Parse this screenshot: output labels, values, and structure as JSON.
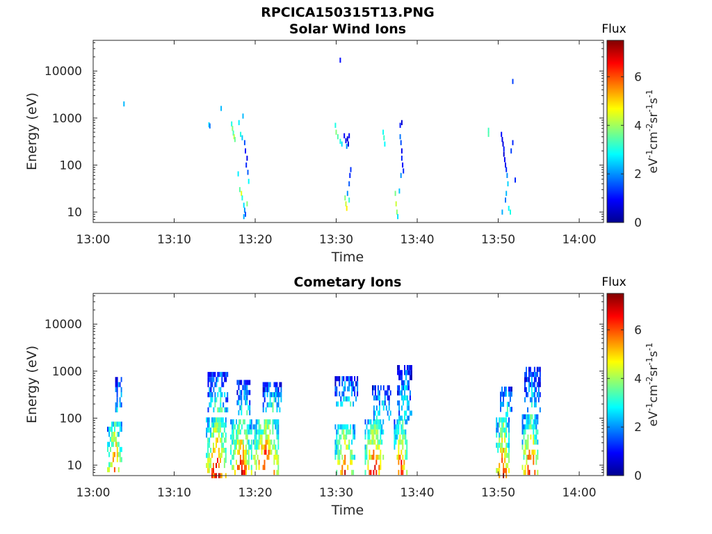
{
  "figure": {
    "title": "RPCICA150315T13.PNG"
  },
  "chart_data": [
    {
      "type": "heatmap",
      "title": "Solar Wind Ions",
      "xlabel": "Time",
      "ylabel": "Energy (eV)",
      "xlim": [
        "13:00",
        "14:03"
      ],
      "x_ticks": [
        "13:00",
        "13:10",
        "13:20",
        "13:30",
        "13:40",
        "13:50",
        "14:00"
      ],
      "ylim": [
        6,
        45000
      ],
      "yscale": "log",
      "y_ticks": [
        10,
        100,
        1000,
        10000
      ],
      "y_tick_labels": [
        "10",
        "100",
        "1000",
        "10000"
      ],
      "colorbar": {
        "title": "Flux",
        "label": "eV-1cm-2sr-1s-1",
        "range": [
          0,
          7.5
        ],
        "ticks": [
          "0",
          "2",
          "4",
          "6"
        ],
        "colormap": "jet"
      },
      "grid": false,
      "cells_note_units": "minutes after 13:00, energy eV, flux value",
      "cells": [
        [
          3.8,
          2000,
          2.3
        ],
        [
          14.3,
          720,
          2.6
        ],
        [
          14.4,
          680,
          1.8
        ],
        [
          15.8,
          1600,
          2.3
        ],
        [
          17.1,
          750,
          3.0
        ],
        [
          17.2,
          600,
          3.8
        ],
        [
          17.3,
          480,
          3.3
        ],
        [
          17.4,
          400,
          4.2
        ],
        [
          17.5,
          350,
          3.6
        ],
        [
          18.0,
          800,
          2.7
        ],
        [
          18.2,
          450,
          3.0
        ],
        [
          18.4,
          380,
          2.4
        ],
        [
          18.5,
          1100,
          2.3
        ],
        [
          18.7,
          300,
          1.5
        ],
        [
          18.8,
          200,
          1.0
        ],
        [
          19.0,
          140,
          0.8
        ],
        [
          18.9,
          100,
          1.2
        ],
        [
          17.9,
          65,
          2.7
        ],
        [
          18.1,
          30,
          3.5
        ],
        [
          18.3,
          25,
          4.5
        ],
        [
          18.4,
          20,
          3.0
        ],
        [
          18.6,
          14,
          2.6
        ],
        [
          18.7,
          11,
          2.0
        ],
        [
          18.8,
          9,
          1.5
        ],
        [
          19.1,
          70,
          1.6
        ],
        [
          19.2,
          45,
          2.8
        ],
        [
          19.0,
          15,
          3.8
        ],
        [
          18.6,
          8,
          2.2
        ],
        [
          29.9,
          700,
          3.0
        ],
        [
          30.0,
          500,
          3.8
        ],
        [
          30.2,
          400,
          3.4
        ],
        [
          30.5,
          320,
          3.0
        ],
        [
          30.7,
          280,
          2.6
        ],
        [
          31.0,
          420,
          0.9
        ],
        [
          31.2,
          330,
          0.8
        ],
        [
          31.5,
          280,
          0.7
        ],
        [
          31.6,
          420,
          0.9
        ],
        [
          31.4,
          360,
          0.6
        ],
        [
          31.3,
          250,
          2.0
        ],
        [
          31.8,
          80,
          1.3
        ],
        [
          31.7,
          60,
          1.2
        ],
        [
          31.6,
          40,
          1.6
        ],
        [
          31.4,
          25,
          2.0
        ],
        [
          31.1,
          20,
          3.8
        ],
        [
          31.2,
          15,
          4.3
        ],
        [
          31.3,
          12,
          4.8
        ],
        [
          31.6,
          18,
          3.2
        ],
        [
          30.5,
          17000,
          1.0
        ],
        [
          35.8,
          500,
          2.9
        ],
        [
          35.9,
          380,
          3.2
        ],
        [
          36.0,
          280,
          2.8
        ],
        [
          37.3,
          25,
          3.7
        ],
        [
          37.4,
          15,
          4.3
        ],
        [
          37.5,
          10,
          3.9
        ],
        [
          37.6,
          8,
          2.6
        ],
        [
          37.9,
          700,
          1.1
        ],
        [
          37.9,
          400,
          1.8
        ],
        [
          38.0,
          300,
          1.5
        ],
        [
          38.1,
          200,
          0.8
        ],
        [
          38.1,
          140,
          1.2
        ],
        [
          38.2,
          100,
          1.0
        ],
        [
          38.3,
          75,
          1.2
        ],
        [
          38.0,
          60,
          2.0
        ],
        [
          37.8,
          28,
          2.4
        ],
        [
          38.1,
          800,
          0.6
        ],
        [
          48.8,
          550,
          3.3
        ],
        [
          48.8,
          450,
          3.4
        ],
        [
          50.4,
          450,
          1.0
        ],
        [
          50.5,
          350,
          0.8
        ],
        [
          50.6,
          280,
          0.7
        ],
        [
          50.7,
          220,
          1.1
        ],
        [
          50.7,
          170,
          0.6
        ],
        [
          50.8,
          130,
          0.9
        ],
        [
          50.9,
          100,
          0.8
        ],
        [
          51.0,
          80,
          1.2
        ],
        [
          51.1,
          60,
          2.0
        ],
        [
          51.2,
          40,
          2.5
        ],
        [
          51.0,
          25,
          2.3
        ],
        [
          50.9,
          18,
          1.8
        ],
        [
          51.3,
          12,
          2.8
        ],
        [
          51.5,
          10,
          3.0
        ],
        [
          50.5,
          10,
          2.2
        ],
        [
          51.8,
          300,
          1.2
        ],
        [
          51.6,
          200,
          1.4
        ],
        [
          52.1,
          48,
          1.2
        ],
        [
          51.8,
          6000,
          1.4
        ]
      ]
    },
    {
      "type": "heatmap",
      "title": "Cometary Ions",
      "xlabel": "Time",
      "ylabel": "Energy (eV)",
      "xlim": [
        "13:00",
        "14:03"
      ],
      "x_ticks": [
        "13:00",
        "13:10",
        "13:20",
        "13:30",
        "13:40",
        "13:50",
        "14:00"
      ],
      "ylim": [
        6,
        45000
      ],
      "yscale": "log",
      "y_ticks": [
        10,
        100,
        1000,
        10000
      ],
      "y_tick_labels": [
        "10",
        "100",
        "1000",
        "10000"
      ],
      "colorbar": {
        "title": "Flux",
        "label": "eV-1cm-2sr-1s-1",
        "range": [
          0,
          7.5
        ],
        "ticks": [
          "0",
          "2",
          "4",
          "6"
        ],
        "colormap": "jet"
      },
      "grid": false,
      "clusters_note": "minutes after 13:00 [start, end], energy eV [low, high], peak flux",
      "clusters": [
        {
          "t": [
            1.8,
            3.6
          ],
          "e": [
            8,
            90
          ],
          "peak": 6.4
        },
        {
          "t": [
            2.8,
            3.6
          ],
          "e": [
            150,
            800
          ],
          "peak": 3.3
        },
        {
          "t": [
            14.0,
            16.5
          ],
          "e": [
            6,
            110
          ],
          "peak": 7.2
        },
        {
          "t": [
            14.2,
            16.7
          ],
          "e": [
            150,
            900
          ],
          "peak": 3.5
        },
        {
          "t": [
            17.0,
            19.6
          ],
          "e": [
            7,
            100
          ],
          "peak": 6.8
        },
        {
          "t": [
            17.8,
            19.5
          ],
          "e": [
            130,
            650
          ],
          "peak": 3.4
        },
        {
          "t": [
            19.8,
            23.0
          ],
          "e": [
            7,
            100
          ],
          "peak": 7.3
        },
        {
          "t": [
            21.0,
            23.3
          ],
          "e": [
            150,
            560
          ],
          "peak": 3.6
        },
        {
          "t": [
            29.9,
            32.3
          ],
          "e": [
            7,
            80
          ],
          "peak": 6.5
        },
        {
          "t": [
            29.9,
            32.7
          ],
          "e": [
            200,
            800
          ],
          "peak": 3.1
        },
        {
          "t": [
            33.6,
            35.9
          ],
          "e": [
            7,
            95
          ],
          "peak": 7.0
        },
        {
          "t": [
            34.5,
            36.8
          ],
          "e": [
            100,
            500
          ],
          "peak": 3.4
        },
        {
          "t": [
            37.2,
            38.8
          ],
          "e": [
            7,
            95
          ],
          "peak": 6.7
        },
        {
          "t": [
            37.6,
            39.4
          ],
          "e": [
            100,
            1400
          ],
          "peak": 3.1
        },
        {
          "t": [
            49.8,
            51.4
          ],
          "e": [
            6,
            110
          ],
          "peak": 6.8
        },
        {
          "t": [
            50.3,
            51.7
          ],
          "e": [
            120,
            520
          ],
          "peak": 3.3
        },
        {
          "t": [
            53.0,
            55.0
          ],
          "e": [
            7,
            110
          ],
          "peak": 7.0
        },
        {
          "t": [
            53.3,
            55.2
          ],
          "e": [
            150,
            1300
          ],
          "peak": 3.0
        }
      ]
    }
  ]
}
